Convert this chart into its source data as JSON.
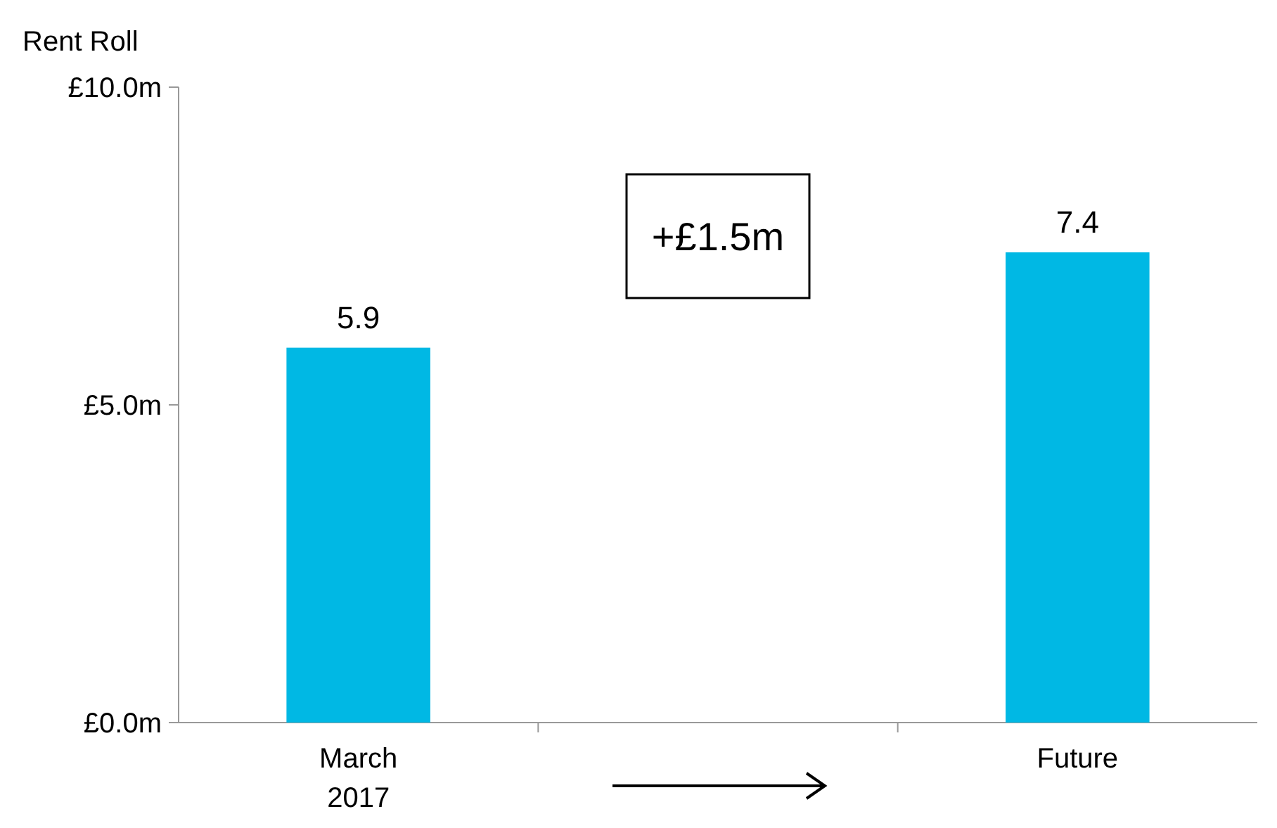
{
  "chart_data": {
    "type": "bar",
    "ylabel": "Rent Roll",
    "categories": [
      "March 2017",
      null,
      "Future"
    ],
    "values": [
      5.9,
      null,
      7.4
    ],
    "color": "#00b8e4",
    "ylim": [
      0,
      10
    ],
    "yticks": [
      {
        "value": 0,
        "label": "£0.0m"
      },
      {
        "value": 5,
        "label": "£5.0m"
      },
      {
        "value": 10,
        "label": "£10.0m"
      }
    ],
    "data_labels": true,
    "grid": false,
    "annotations": [
      "+£1.5m"
    ]
  }
}
